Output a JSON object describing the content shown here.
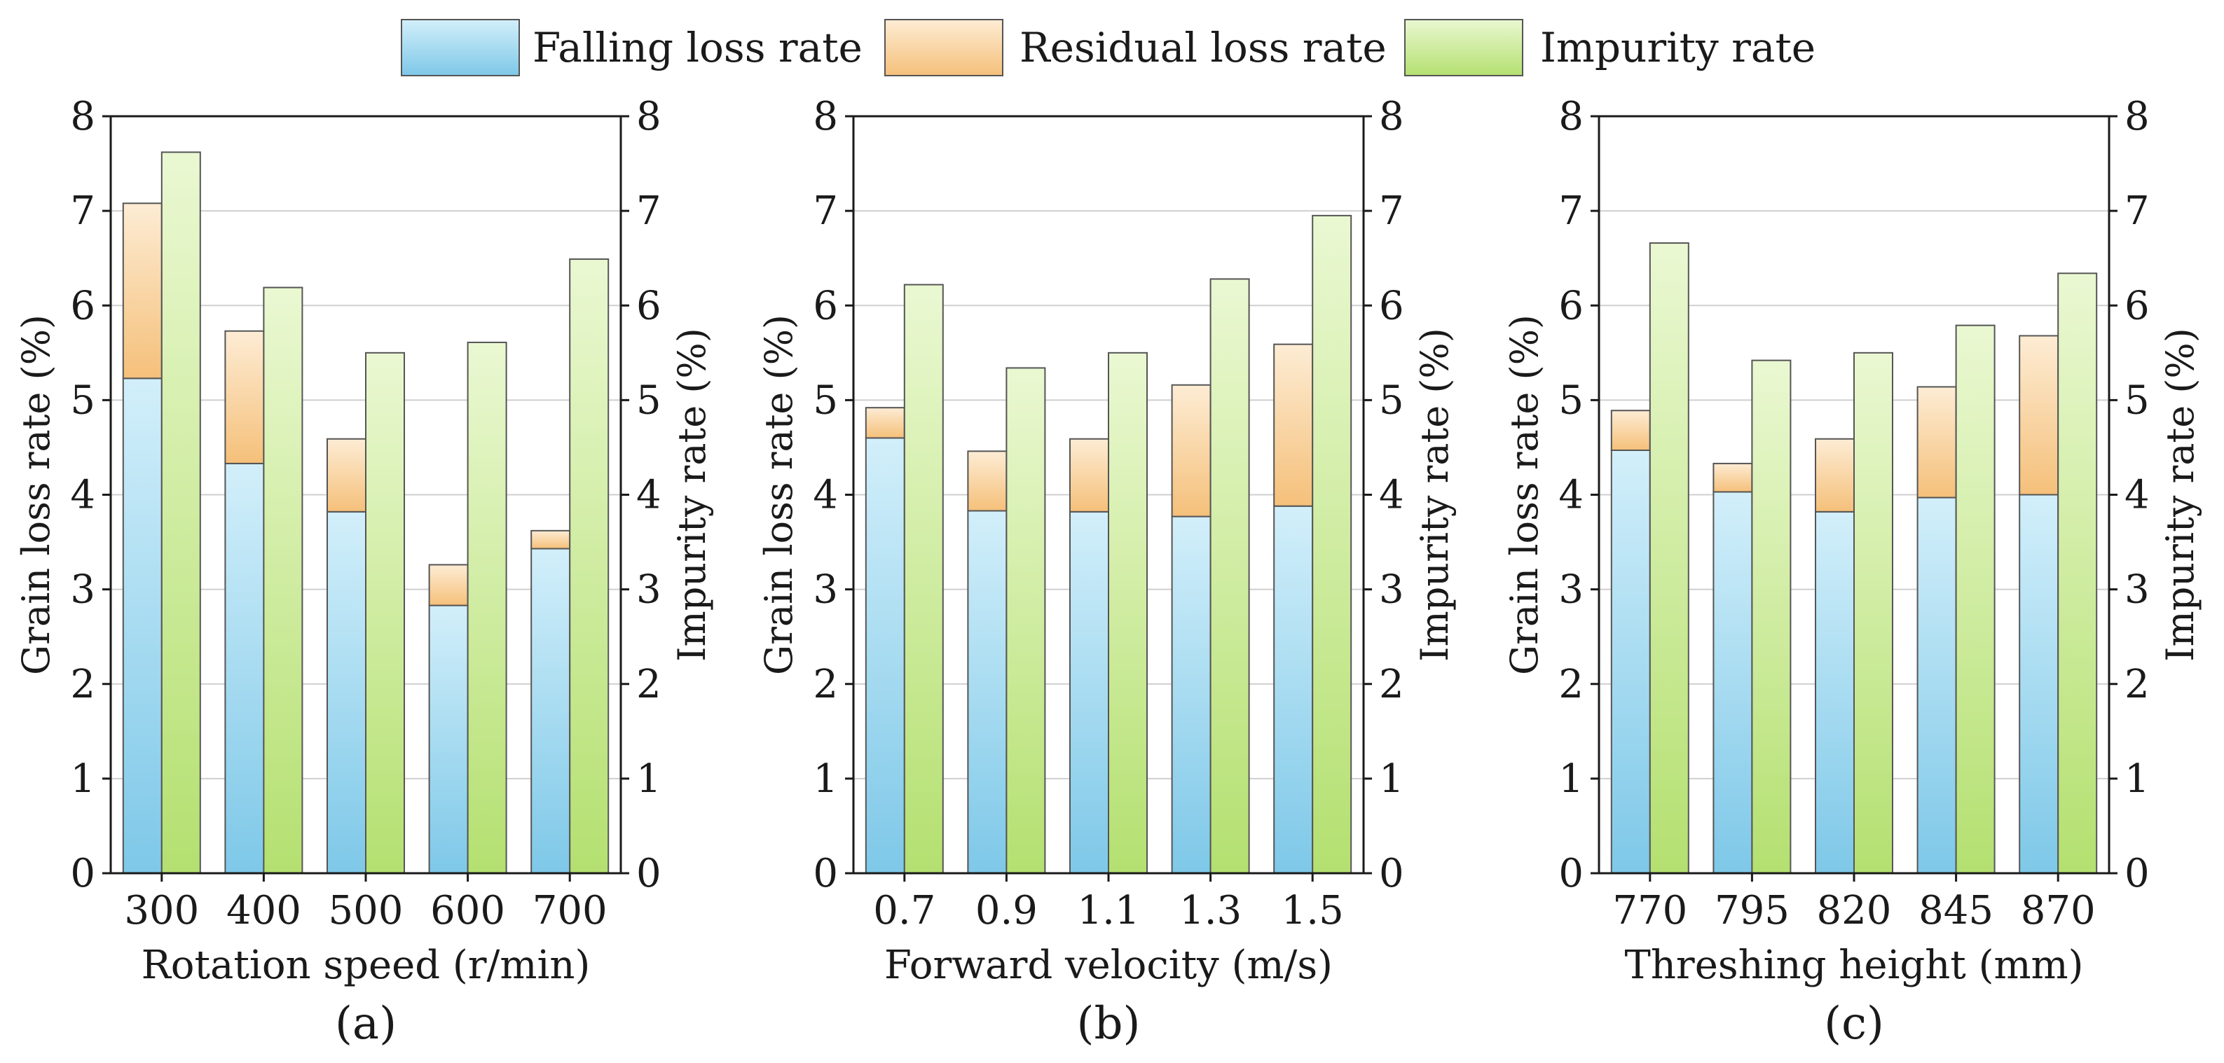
{
  "legend": {
    "position": "top-center",
    "items": [
      {
        "key": "falling",
        "label": "Falling loss rate"
      },
      {
        "key": "residual",
        "label": "Residual loss rate"
      },
      {
        "key": "impurity",
        "label": "Impurity rate"
      }
    ]
  },
  "colors": {
    "falling_top": "#d2effa",
    "falling_bottom": "#7ec8e8",
    "residual_top": "#fdecd4",
    "residual_bottom": "#f5c07a",
    "impurity_top": "#eaf8d2",
    "impurity_bottom": "#b4e070",
    "gridline": "#cfcfcf",
    "bar_stroke": "#555555",
    "axis": "#1a1a1a"
  },
  "chart_data": [
    {
      "type": "bar",
      "panel_label": "(a)",
      "xlabel": "Rotation speed (r/min)",
      "ylabel": "Grain loss rate (%)",
      "y2label": "Impurity rate (%)",
      "ylim": [
        0,
        8
      ],
      "y2lim": [
        0,
        8
      ],
      "yticks": [
        "0",
        "1",
        "2",
        "3",
        "4",
        "5",
        "6",
        "7",
        "8"
      ],
      "grid": true,
      "stacked_left": true,
      "categories": [
        "300",
        "400",
        "500",
        "600",
        "700"
      ],
      "series": [
        {
          "name": "Falling loss rate",
          "axis": "left",
          "stack": "loss",
          "values": [
            5.23,
            4.33,
            3.82,
            2.83,
            3.43
          ]
        },
        {
          "name": "Residual loss rate",
          "axis": "left",
          "stack": "loss",
          "values": [
            1.85,
            1.4,
            0.77,
            0.43,
            0.19
          ]
        },
        {
          "name": "Impurity rate",
          "axis": "right",
          "values": [
            7.62,
            6.19,
            5.5,
            5.61,
            6.49
          ]
        }
      ]
    },
    {
      "type": "bar",
      "panel_label": "(b)",
      "xlabel": "Forward velocity (m/s)",
      "ylabel": "Grain loss rate (%)",
      "y2label": "Impurity rate (%)",
      "ylim": [
        0,
        8
      ],
      "y2lim": [
        0,
        8
      ],
      "yticks": [
        "0",
        "1",
        "2",
        "3",
        "4",
        "5",
        "6",
        "7",
        "8"
      ],
      "grid": true,
      "stacked_left": true,
      "categories": [
        "0.7",
        "0.9",
        "1.1",
        "1.3",
        "1.5"
      ],
      "series": [
        {
          "name": "Falling loss rate",
          "axis": "left",
          "stack": "loss",
          "values": [
            4.6,
            3.83,
            3.82,
            3.77,
            3.88
          ]
        },
        {
          "name": "Residual loss rate",
          "axis": "left",
          "stack": "loss",
          "values": [
            0.32,
            0.63,
            0.77,
            1.39,
            1.71
          ]
        },
        {
          "name": "Impurity rate",
          "axis": "right",
          "values": [
            6.22,
            5.34,
            5.5,
            6.28,
            6.95
          ]
        }
      ]
    },
    {
      "type": "bar",
      "panel_label": "(c)",
      "xlabel": "Threshing height (mm)",
      "ylabel": "Grain loss rate (%)",
      "y2label": "Impurity rate (%)",
      "ylim": [
        0,
        8
      ],
      "y2lim": [
        0,
        8
      ],
      "yticks": [
        "0",
        "1",
        "2",
        "3",
        "4",
        "5",
        "6",
        "7",
        "8"
      ],
      "grid": true,
      "stacked_left": true,
      "categories": [
        "770",
        "795",
        "820",
        "845",
        "870"
      ],
      "series": [
        {
          "name": "Falling loss rate",
          "axis": "left",
          "stack": "loss",
          "values": [
            4.47,
            4.03,
            3.82,
            3.97,
            4.0
          ]
        },
        {
          "name": "Residual loss rate",
          "axis": "left",
          "stack": "loss",
          "values": [
            0.42,
            0.3,
            0.77,
            1.17,
            1.68
          ]
        },
        {
          "name": "Impurity rate",
          "axis": "right",
          "values": [
            6.66,
            5.42,
            5.5,
            5.79,
            6.34
          ]
        }
      ]
    }
  ]
}
